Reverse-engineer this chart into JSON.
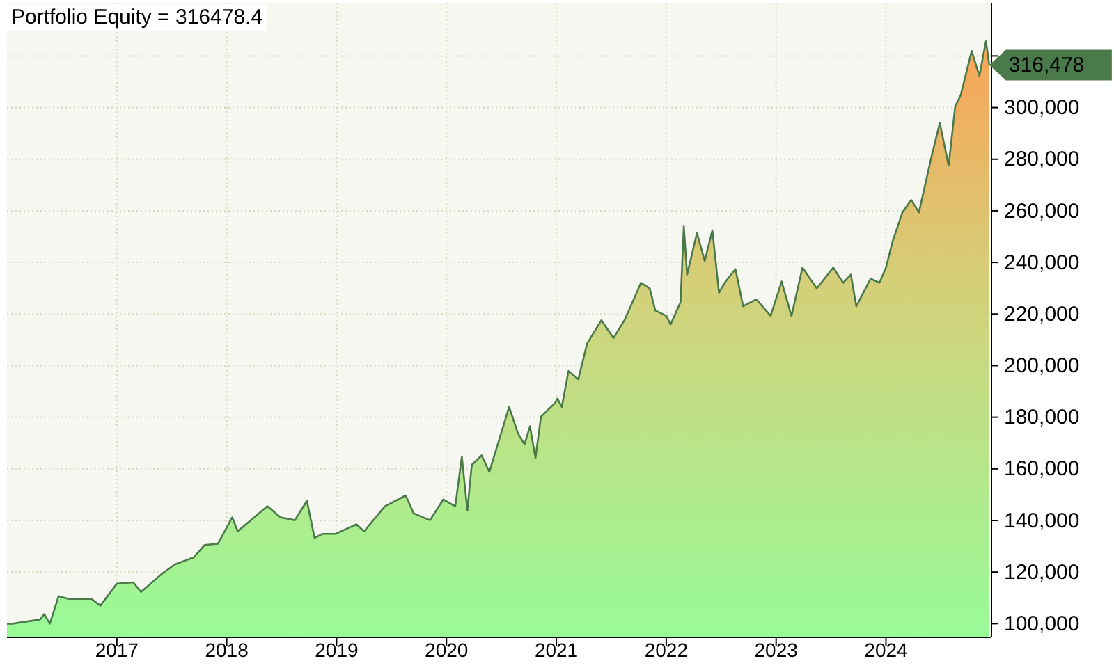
{
  "chart_data": {
    "type": "area",
    "title": "Portfolio Equity = 316478.4",
    "x": [
      2016.0,
      2016.05,
      2016.3,
      2016.34,
      2016.39,
      2016.47,
      2016.56,
      2016.77,
      2016.85,
      2017.0,
      2017.15,
      2017.22,
      2017.41,
      2017.53,
      2017.7,
      2017.8,
      2017.92,
      2018.05,
      2018.1,
      2018.37,
      2018.49,
      2018.62,
      2018.73,
      2018.8,
      2018.87,
      2018.99,
      2019.18,
      2019.25,
      2019.44,
      2019.63,
      2019.7,
      2019.85,
      2019.97,
      2020.08,
      2020.14,
      2020.19,
      2020.23,
      2020.32,
      2020.39,
      2020.57,
      2020.65,
      2020.71,
      2020.76,
      2020.81,
      2020.86,
      2020.99,
      2021.01,
      2021.05,
      2021.11,
      2021.2,
      2021.28,
      2021.41,
      2021.52,
      2021.62,
      2021.77,
      2021.85,
      2021.9,
      2022.0,
      2022.04,
      2022.13,
      2022.16,
      2022.19,
      2022.28,
      2022.35,
      2022.42,
      2022.48,
      2022.54,
      2022.63,
      2022.7,
      2022.82,
      2022.95,
      2023.05,
      2023.14,
      2023.24,
      2023.37,
      2023.52,
      2023.61,
      2023.68,
      2023.73,
      2023.86,
      2023.94,
      2024.0,
      2024.06,
      2024.15,
      2024.23,
      2024.3,
      2024.41,
      2024.49,
      2024.57,
      2024.63,
      2024.68,
      2024.78,
      2024.85,
      2024.91,
      2024.94
    ],
    "series": [
      {
        "color": "#4a7a4a",
        "values": [
          100000,
          100000,
          101600,
          103700,
          100000,
          110700,
          109600,
          109600,
          107000,
          115500,
          116000,
          112300,
          119300,
          123000,
          125700,
          130500,
          131000,
          141200,
          135800,
          145500,
          141200,
          140100,
          147600,
          133200,
          134800,
          134800,
          138500,
          135800,
          145500,
          149700,
          142800,
          140100,
          148100,
          145500,
          164700,
          143900,
          161500,
          165200,
          158800,
          184000,
          173800,
          169500,
          176500,
          164200,
          180200,
          185600,
          187200,
          184000,
          197900,
          194700,
          208600,
          217600,
          210700,
          217600,
          232100,
          229900,
          221400,
          219300,
          216000,
          224600,
          254000,
          235300,
          251400,
          240600,
          252400,
          228300,
          232600,
          237400,
          223000,
          225700,
          219300,
          232600,
          219300,
          238000,
          229900,
          238000,
          232100,
          235300,
          223000,
          233700,
          232100,
          238000,
          248100,
          259400,
          264200,
          259400,
          280200,
          294100,
          277500,
          300500,
          304800,
          321900,
          312300,
          325700,
          316500
        ]
      }
    ],
    "xlim": [
      2016,
      2024.96
    ],
    "xticks": [
      2017,
      2018,
      2019,
      2020,
      2021,
      2022,
      2023,
      2024
    ],
    "ylim": [
      94700,
      340600
    ],
    "yticks": [
      {
        "value": 100000,
        "label": "100,000"
      },
      {
        "value": 120000,
        "label": "120,000"
      },
      {
        "value": 140000,
        "label": "140,000"
      },
      {
        "value": 160000,
        "label": "160,000"
      },
      {
        "value": 180000,
        "label": "180,000"
      },
      {
        "value": 200000,
        "label": "200,000"
      },
      {
        "value": 220000,
        "label": "220,000"
      },
      {
        "value": 240000,
        "label": "240,000"
      },
      {
        "value": 260000,
        "label": "260,000"
      },
      {
        "value": 280000,
        "label": "280,000"
      },
      {
        "value": 300000,
        "label": "300,000"
      },
      {
        "value": 320000,
        "label": null
      }
    ],
    "annotations": [
      {
        "text": "316,478",
        "x": 2024.94,
        "y": 316478
      }
    ],
    "grid": true
  }
}
